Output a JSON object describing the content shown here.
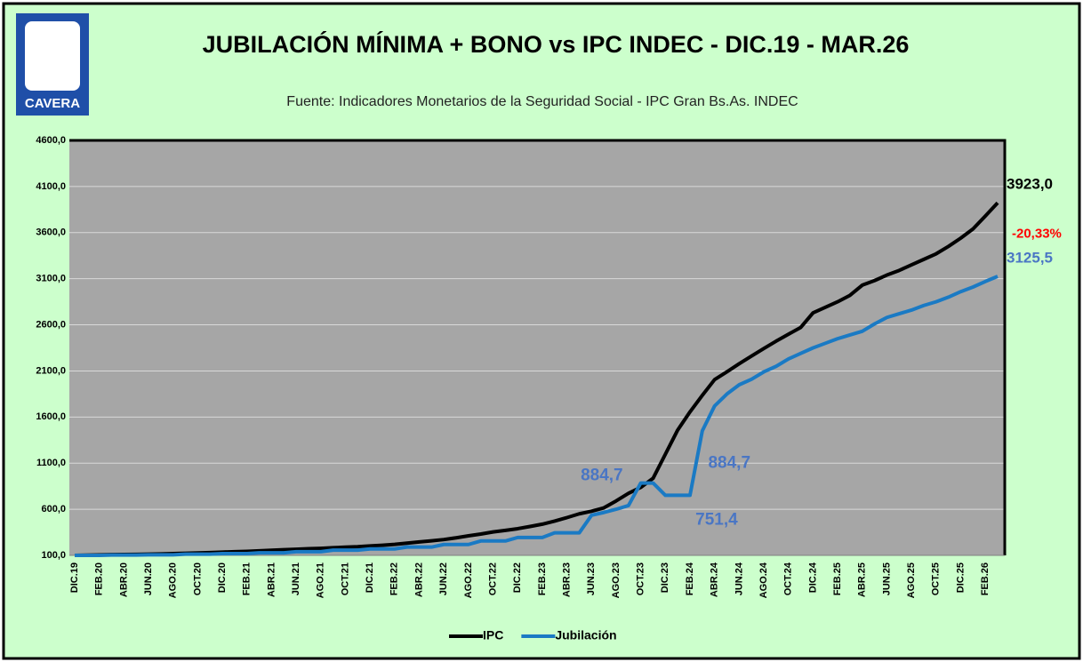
{
  "logo_text": "CAVERA",
  "chart_data": {
    "type": "line",
    "title": "JUBILACIÓN MÍNIMA + BONO vs  IPC INDEC - DIC.19 - MAR.26",
    "subtitle": "Fuente:  Indicadores Monetarios de la Seguridad Social - IPC Gran Bs.As. INDEC",
    "categories": [
      "DIC.19",
      null,
      "FEB.20",
      null,
      "ABR.20",
      null,
      "JUN.20",
      null,
      "AGO.20",
      null,
      "OCT.20",
      null,
      "DIC.20",
      null,
      "FEB.21",
      null,
      "ABR.21",
      null,
      "JUN.21",
      null,
      "AGO.21",
      null,
      "OCT.21",
      null,
      "DIC.21",
      null,
      "FEB.22",
      null,
      "ABR.22",
      null,
      "JUN.22",
      null,
      "AGO.22",
      null,
      "OCT.22",
      null,
      "DIC.22",
      null,
      "FEB.23",
      null,
      "ABR.23",
      null,
      "JUN.23",
      null,
      "AGO.23",
      null,
      "OCT.23",
      null,
      "DIC.23",
      null,
      "FEB.24",
      null,
      "ABR.24",
      null,
      "JUN.24",
      null,
      "AGO.24",
      null,
      "OCT.24",
      null,
      "DIC.24",
      null,
      "FEB.25",
      null,
      "ABR.25",
      null,
      "JUN.25",
      null,
      "AGO.25",
      null,
      "OCT.25",
      null,
      "DIC.25",
      null,
      "FEB.26",
      null
    ],
    "series": [
      {
        "name": "IPC",
        "color": "#000000",
        "label_color": "#000000",
        "values": [
          100,
          102.3,
          104.4,
          107.9,
          109.5,
          111.2,
          113.6,
          115.6,
          118.8,
          122.4,
          126.4,
          129.9,
          135.2,
          140,
          143.8,
          149.5,
          155.7,
          160.9,
          166.5,
          171.9,
          176.2,
          182.6,
          189,
          193.6,
          201.9,
          209.6,
          218.9,
          232.6,
          246.2,
          258.3,
          271.6,
          290.5,
          311.8,
          331.3,
          353.9,
          371.1,
          389.5,
          413.2,
          438.3,
          471.6,
          509.6,
          550.5,
          578.9,
          615.4,
          690.5,
          772.5,
          837.4,
          935.5,
          1197.4,
          1459,
          1656,
          1835,
          2006,
          2090,
          2178,
          2261,
          2343,
          2423,
          2498,
          2572,
          2730,
          2790,
          2850,
          2920,
          3030,
          3080,
          3140,
          3190,
          3250,
          3310,
          3370,
          3450,
          3540,
          3640,
          3780,
          3923
        ],
        "value_labels": [
          null,
          null,
          null,
          null,
          null,
          null,
          null,
          null,
          null,
          null,
          null,
          null,
          null,
          null,
          null,
          null,
          null,
          null,
          null,
          null,
          null,
          null,
          null,
          null,
          null,
          null,
          null,
          null,
          null,
          null,
          null,
          null,
          null,
          null,
          null,
          null,
          null,
          null,
          null,
          null,
          null,
          null,
          null,
          null,
          null,
          null,
          null,
          null,
          null,
          null,
          null,
          null,
          null,
          null,
          null,
          null,
          null,
          null,
          null,
          null,
          null,
          null,
          null,
          null,
          null,
          null,
          null,
          null,
          null,
          null,
          null,
          null,
          null,
          null,
          null,
          "3923,0"
        ]
      },
      {
        "name": "Jubilación",
        "color": "#1a7ac4",
        "label_color": "#4a76c4",
        "values": [
          100,
          100,
          100,
          103.5,
          103.5,
          103.5,
          106,
          106,
          106,
          113.7,
          113.7,
          113.7,
          119.7,
          119.7,
          119.7,
          128,
          128,
          128,
          140,
          140,
          140,
          157,
          157,
          157,
          170,
          170,
          170,
          190,
          190,
          190,
          218,
          218,
          218,
          256,
          256,
          256,
          294,
          294,
          294,
          344,
          344,
          344,
          535,
          565,
          600,
          640,
          884.7,
          884.7,
          751.4,
          751.4,
          751.4,
          1450,
          1720,
          1850,
          1950,
          2010,
          2090,
          2150,
          2230,
          2290,
          2350,
          2400,
          2450,
          2490,
          2530,
          2610,
          2680,
          2720,
          2760,
          2810,
          2850,
          2900,
          2960,
          3010,
          3070,
          3125.5
        ],
        "value_labels": [
          null,
          null,
          null,
          null,
          null,
          null,
          null,
          null,
          null,
          null,
          null,
          null,
          null,
          null,
          null,
          null,
          null,
          null,
          null,
          null,
          null,
          null,
          null,
          null,
          null,
          null,
          null,
          null,
          null,
          null,
          null,
          null,
          null,
          null,
          null,
          null,
          null,
          null,
          null,
          null,
          null,
          null,
          null,
          null,
          null,
          null,
          "884,7",
          "884,7",
          null,
          "751,4",
          null,
          null,
          null,
          null,
          null,
          null,
          null,
          null,
          null,
          null,
          null,
          null,
          null,
          null,
          null,
          null,
          null,
          null,
          null,
          null,
          null,
          null,
          null,
          null,
          null,
          "3125,5"
        ]
      }
    ],
    "difference_label": "-20,33%",
    "difference_color": "#ff0000",
    "ylim": [
      100,
      4600
    ],
    "yticks": [
      {
        "value": 100,
        "label": "100,0"
      },
      {
        "value": 600,
        "label": "600,0"
      },
      {
        "value": 1100,
        "label": "1100,0"
      },
      {
        "value": 1600,
        "label": "1600,0"
      },
      {
        "value": 2100,
        "label": "2100,0"
      },
      {
        "value": 2600,
        "label": "2600,0"
      },
      {
        "value": 3100,
        "label": "3100,0"
      },
      {
        "value": 3600,
        "label": "3600,0"
      },
      {
        "value": 4100,
        "label": "4100,0"
      },
      {
        "value": 4600,
        "label": "4600,0"
      }
    ],
    "grid": true,
    "legend": "bottom"
  }
}
